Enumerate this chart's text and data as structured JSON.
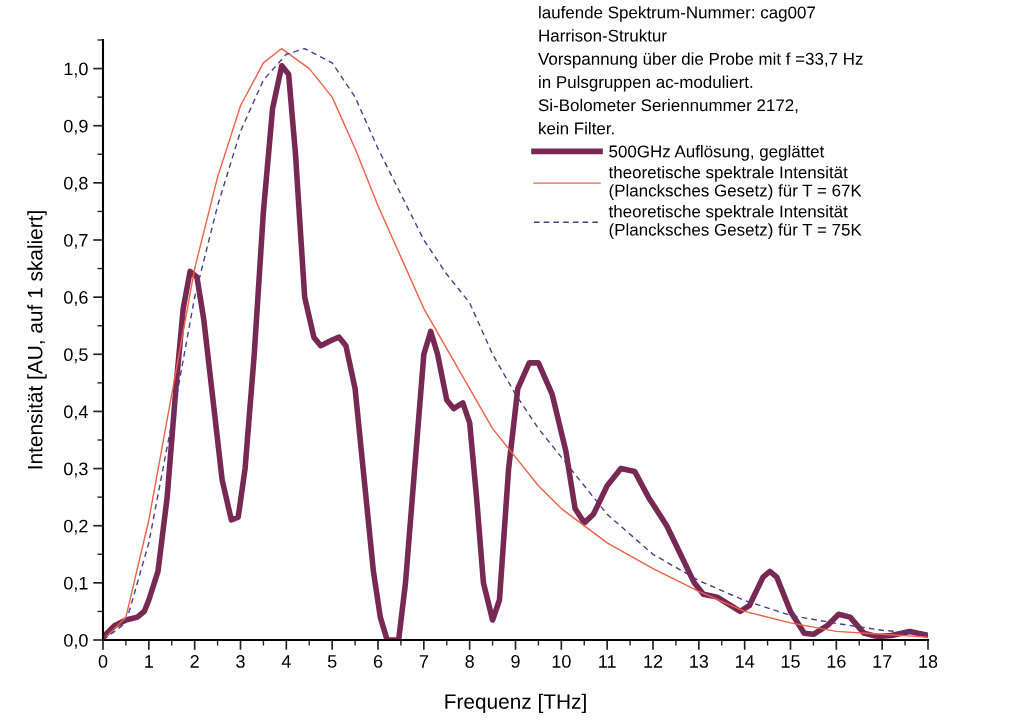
{
  "chart_data": {
    "type": "line",
    "xlabel": "Frequenz [THz]",
    "ylabel": "Intensität [AU, auf 1 skaliert]",
    "annotations": [
      "laufende Spektrum-Nummer: cag007",
      "Harrison-Struktur",
      "Vorspannung über die Probe mit f =33,7 Hz",
      "in Pulsgruppen ac-moduliert.",
      "Si-Bolometer Seriennummer 2172,",
      "kein Filter."
    ],
    "xlim": [
      0,
      18
    ],
    "ylim": [
      0,
      1.05
    ],
    "xticks": [
      0,
      1,
      2,
      3,
      4,
      5,
      6,
      7,
      8,
      9,
      10,
      11,
      12,
      13,
      14,
      15,
      16,
      17,
      18
    ],
    "yticks": [
      {
        "value": 0,
        "label": "0,0"
      },
      {
        "value": 0.1,
        "label": "0,1"
      },
      {
        "value": 0.2,
        "label": "0,2"
      },
      {
        "value": 0.3,
        "label": "0,3"
      },
      {
        "value": 0.4,
        "label": "0,4"
      },
      {
        "value": 0.5,
        "label": "0,5"
      },
      {
        "value": 0.6,
        "label": "0,6"
      },
      {
        "value": 0.7,
        "label": "0,7"
      },
      {
        "value": 0.8,
        "label": "0,8"
      },
      {
        "value": 0.9,
        "label": "0,9"
      },
      {
        "value": 1.0,
        "label": "1,0"
      }
    ],
    "grid": false,
    "legend": "top right",
    "marker": "none",
    "series": [
      {
        "name": "500GHz Auflösung, geglättet",
        "color": "#772953",
        "line_style": "solid",
        "x": [
          0,
          0.25,
          0.5,
          0.75,
          0.9,
          1.0,
          1.2,
          1.4,
          1.6,
          1.75,
          1.9,
          2.05,
          2.2,
          2.4,
          2.6,
          2.8,
          2.95,
          3.1,
          3.3,
          3.5,
          3.7,
          3.9,
          4.05,
          4.2,
          4.4,
          4.6,
          4.75,
          5.0,
          5.15,
          5.3,
          5.5,
          5.7,
          5.9,
          6.05,
          6.2,
          6.45,
          6.6,
          6.8,
          7.0,
          7.15,
          7.3,
          7.5,
          7.65,
          7.85,
          8.0,
          8.15,
          8.3,
          8.5,
          8.65,
          8.85,
          9.05,
          9.3,
          9.5,
          9.8,
          10.1,
          10.3,
          10.5,
          10.7,
          11.0,
          11.3,
          11.6,
          11.9,
          12.3,
          12.6,
          12.9,
          13.1,
          13.4,
          13.7,
          13.9,
          14.1,
          14.4,
          14.55,
          14.7,
          15.0,
          15.3,
          15.5,
          15.8,
          16.05,
          16.3,
          16.6,
          16.9,
          17.2,
          17.6,
          18.0
        ],
        "values": [
          0.005,
          0.025,
          0.035,
          0.04,
          0.05,
          0.07,
          0.12,
          0.25,
          0.45,
          0.58,
          0.645,
          0.635,
          0.56,
          0.42,
          0.28,
          0.21,
          0.215,
          0.3,
          0.5,
          0.75,
          0.93,
          1.005,
          0.99,
          0.85,
          0.6,
          0.53,
          0.515,
          0.525,
          0.53,
          0.515,
          0.44,
          0.28,
          0.12,
          0.04,
          0.0,
          0.0,
          0.1,
          0.3,
          0.5,
          0.54,
          0.5,
          0.42,
          0.405,
          0.415,
          0.38,
          0.25,
          0.1,
          0.035,
          0.07,
          0.3,
          0.44,
          0.485,
          0.485,
          0.43,
          0.33,
          0.23,
          0.205,
          0.22,
          0.27,
          0.3,
          0.295,
          0.25,
          0.2,
          0.15,
          0.1,
          0.08,
          0.075,
          0.06,
          0.05,
          0.06,
          0.11,
          0.12,
          0.11,
          0.05,
          0.012,
          0.01,
          0.025,
          0.045,
          0.04,
          0.012,
          0.006,
          0.008,
          0.015,
          0.008
        ]
      },
      {
        "name": "theoretische spektrale Intensität\n(Plancksches Gesetz) für T = 67K",
        "color": "#f06048",
        "line_style": "solid",
        "x": [
          0,
          0.5,
          1,
          1.5,
          2,
          2.5,
          3,
          3.5,
          3.9,
          4.5,
          5,
          5.5,
          6,
          6.5,
          7,
          7.5,
          8,
          8.5,
          9,
          9.5,
          10,
          11,
          12,
          13,
          14,
          15,
          16,
          17,
          18
        ],
        "values": [
          0,
          0.04,
          0.21,
          0.43,
          0.65,
          0.81,
          0.935,
          1.01,
          1.035,
          1.0,
          0.95,
          0.86,
          0.76,
          0.67,
          0.58,
          0.51,
          0.44,
          0.37,
          0.32,
          0.27,
          0.23,
          0.17,
          0.125,
          0.085,
          0.05,
          0.03,
          0.015,
          0.01,
          0.005
        ]
      },
      {
        "name": "theoretische spektrale Intensität\n(Plancksches Gesetz) für T = 75K",
        "color": "#4b3c8c",
        "line_style": "dashed",
        "x": [
          0,
          0.5,
          1,
          1.5,
          2,
          2.5,
          3,
          3.5,
          4,
          4.4,
          5,
          5.5,
          6,
          6.5,
          7,
          7.5,
          8,
          8.5,
          9,
          9.5,
          10,
          11,
          12,
          13,
          14,
          15,
          16,
          17,
          18
        ],
        "values": [
          0,
          0.03,
          0.17,
          0.38,
          0.6,
          0.76,
          0.89,
          0.98,
          1.025,
          1.035,
          1.01,
          0.95,
          0.86,
          0.78,
          0.7,
          0.64,
          0.59,
          0.5,
          0.43,
          0.37,
          0.32,
          0.22,
          0.15,
          0.104,
          0.069,
          0.043,
          0.029,
          0.017,
          0.01
        ]
      }
    ]
  }
}
